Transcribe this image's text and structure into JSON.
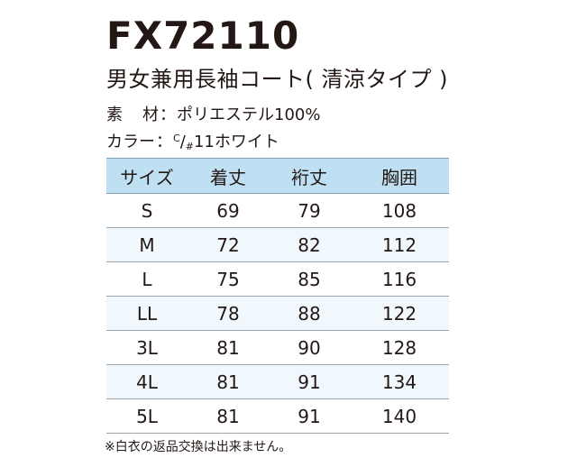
{
  "product": {
    "code": "FX72110",
    "name": "男女兼用長袖コート( 清涼タイプ )"
  },
  "specs": {
    "material_label_1": "素",
    "material_label_2": "材",
    "separator": "：",
    "material_value": "ポリエステル100%",
    "color_label": "カラー",
    "color_code_top": "C",
    "color_code_slash": "/",
    "color_code_hash": "#",
    "color_value": "11ホワイト"
  },
  "table": {
    "headers": [
      "サイズ",
      "着丈",
      "裄丈",
      "胸囲"
    ],
    "rows": [
      [
        "S",
        "69",
        "79",
        "108"
      ],
      [
        "M",
        "72",
        "82",
        "112"
      ],
      [
        "L",
        "75",
        "85",
        "116"
      ],
      [
        "LL",
        "78",
        "88",
        "122"
      ],
      [
        "3L",
        "81",
        "90",
        "128"
      ],
      [
        "4L",
        "81",
        "91",
        "134"
      ],
      [
        "5L",
        "81",
        "91",
        "140"
      ]
    ],
    "header_color": "#bfe0f2",
    "alt_row_color": "#f0f8fd"
  },
  "note": "※白衣の返品交換は出来ません。"
}
